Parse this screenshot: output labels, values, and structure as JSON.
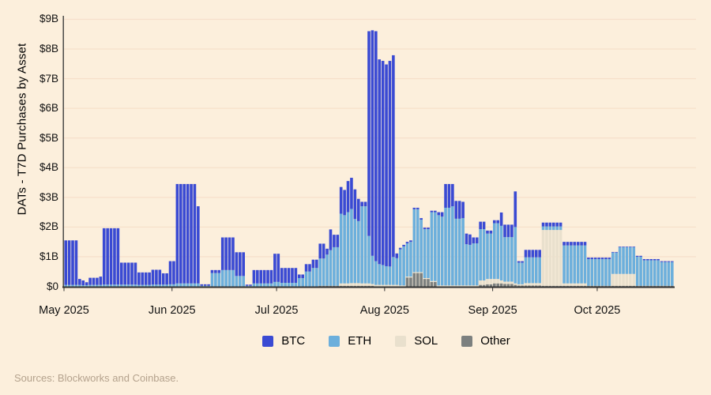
{
  "y_axis": {
    "title": "DATs - T7D Purchases by Asset",
    "tick_labels": [
      "$0",
      "$1B",
      "$2B",
      "$3B",
      "$4B",
      "$5B",
      "$6B",
      "$7B",
      "$8B",
      "$9B"
    ]
  },
  "x_axis": {
    "tick_labels": [
      "May 2025",
      "Jun 2025",
      "Jul 2025",
      "Aug 2025",
      "Sep 2025",
      "Oct 2025"
    ]
  },
  "footer": {
    "sources": "Sources: Blockworks and Coinbase."
  },
  "chart_data": {
    "type": "bar",
    "stacked": true,
    "title": "DATs - T7D Purchases by Asset",
    "ylabel": "DATs - T7D Purchases by Asset",
    "y_unit": "USD billions",
    "ylim": [
      0,
      9
    ],
    "grid": "horizontal",
    "legend_position": "bottom",
    "x_range": [
      "2025-05-01",
      "2025-10-22"
    ],
    "stack_order_bottom_to_top": [
      "Other",
      "SOL",
      "ETH",
      "BTC"
    ],
    "series_meta": [
      {
        "name": "BTC",
        "color": "#3a4ad3"
      },
      {
        "name": "ETH",
        "color": "#6cafdc"
      },
      {
        "name": "SOL",
        "color": "#e9e0cd"
      },
      {
        "name": "Other",
        "color": "#7c807f"
      }
    ],
    "month_lengths": {
      "May": 31,
      "Jun": 30,
      "Jul": 31,
      "Aug": 31,
      "Sep": 30,
      "Oct": 22
    },
    "runs_format": [
      "month",
      "start_day",
      "end_day",
      "BTC_B",
      "ETH_B",
      "SOL_B",
      "Other_B"
    ],
    "runs": [
      [
        "May",
        1,
        4,
        1.5,
        0.05,
        0,
        0
      ],
      [
        "May",
        5,
        5,
        0.2,
        0.05,
        0,
        0
      ],
      [
        "May",
        6,
        6,
        0.16,
        0.04,
        0,
        0
      ],
      [
        "May",
        7,
        7,
        0.1,
        0.04,
        0,
        0
      ],
      [
        "May",
        8,
        10,
        0.24,
        0.05,
        0,
        0
      ],
      [
        "May",
        11,
        11,
        0.28,
        0.05,
        0,
        0
      ],
      [
        "May",
        12,
        16,
        1.9,
        0.06,
        0,
        0
      ],
      [
        "May",
        17,
        21,
        0.74,
        0.06,
        0,
        0
      ],
      [
        "May",
        22,
        25,
        0.42,
        0.05,
        0,
        0
      ],
      [
        "May",
        26,
        28,
        0.5,
        0.06,
        0,
        0
      ],
      [
        "May",
        29,
        30,
        0.38,
        0.06,
        0,
        0
      ],
      [
        "May",
        31,
        31,
        0.78,
        0.07,
        0,
        0
      ],
      [
        "Jun",
        1,
        1,
        0.78,
        0.07,
        0,
        0
      ],
      [
        "Jun",
        2,
        7,
        3.35,
        0.1,
        0,
        0
      ],
      [
        "Jun",
        8,
        8,
        2.6,
        0.1,
        0,
        0
      ],
      [
        "Jun",
        9,
        11,
        0.05,
        0.02,
        0,
        0
      ],
      [
        "Jun",
        12,
        14,
        0.1,
        0.45,
        0,
        0
      ],
      [
        "Jun",
        15,
        18,
        1.1,
        0.55,
        0,
        0
      ],
      [
        "Jun",
        19,
        21,
        0.8,
        0.35,
        0,
        0
      ],
      [
        "Jun",
        22,
        23,
        0.04,
        0.02,
        0,
        0
      ],
      [
        "Jun",
        24,
        29,
        0.45,
        0.1,
        0,
        0
      ],
      [
        "Jun",
        30,
        30,
        0.95,
        0.15,
        0,
        0
      ],
      [
        "Jul",
        1,
        1,
        0.95,
        0.15,
        0,
        0
      ],
      [
        "Jul",
        2,
        6,
        0.5,
        0.12,
        0,
        0
      ],
      [
        "Jul",
        7,
        8,
        0.12,
        0.28,
        0,
        0
      ],
      [
        "Jul",
        9,
        10,
        0.25,
        0.5,
        0,
        0
      ],
      [
        "Jul",
        11,
        12,
        0.28,
        0.62,
        0,
        0
      ],
      [
        "Jul",
        13,
        14,
        0.5,
        0.92,
        0,
        0.02
      ],
      [
        "Jul",
        15,
        15,
        0.2,
        1.05,
        0,
        0.02
      ],
      [
        "Jul",
        16,
        16,
        0.7,
        1.2,
        0,
        0.02
      ],
      [
        "Jul",
        17,
        18,
        0.42,
        1.3,
        0,
        0.02
      ],
      [
        "Jul",
        19,
        19,
        0.9,
        2.35,
        0.08,
        0.02
      ],
      [
        "Jul",
        20,
        20,
        0.85,
        2.3,
        0.08,
        0.02
      ],
      [
        "Jul",
        21,
        21,
        1.05,
        2.4,
        0.08,
        0.02
      ],
      [
        "Jul",
        22,
        22,
        1.05,
        2.5,
        0.09,
        0.02
      ],
      [
        "Jul",
        23,
        23,
        1.0,
        2.16,
        0.09,
        0.02
      ],
      [
        "Jul",
        24,
        24,
        0.75,
        2.09,
        0.09,
        0.02
      ],
      [
        "Jul",
        25,
        26,
        0.15,
        2.6,
        0.08,
        0.02
      ],
      [
        "Jul",
        27,
        27,
        6.9,
        1.6,
        0.08,
        0.02
      ],
      [
        "Jul",
        28,
        28,
        7.6,
        0.95,
        0.06,
        0.02
      ],
      [
        "Jul",
        29,
        29,
        7.75,
        0.8,
        0.05,
        0
      ],
      [
        "Jul",
        30,
        30,
        6.9,
        0.7,
        0.05,
        0
      ],
      [
        "Jul",
        31,
        31,
        6.88,
        0.67,
        0.05,
        0
      ],
      [
        "Aug",
        1,
        1,
        6.8,
        0.63,
        0.05,
        0
      ],
      [
        "Aug",
        2,
        2,
        6.93,
        0.62,
        0.05,
        0
      ],
      [
        "Aug",
        3,
        3,
        6.8,
        0.94,
        0.05,
        0
      ],
      [
        "Aug",
        4,
        4,
        0.16,
        0.9,
        0.05,
        0
      ],
      [
        "Aug",
        5,
        5,
        0.05,
        1.22,
        0.03,
        0
      ],
      [
        "Aug",
        6,
        6,
        0.05,
        1.32,
        0.03,
        0
      ],
      [
        "Aug",
        7,
        7,
        0.05,
        1.12,
        0.03,
        0.3
      ],
      [
        "Aug",
        8,
        8,
        0.05,
        1.17,
        0.03,
        0.3
      ],
      [
        "Aug",
        9,
        10,
        0.05,
        2.12,
        0.03,
        0.45
      ],
      [
        "Aug",
        11,
        11,
        0.05,
        1.77,
        0.03,
        0.45
      ],
      [
        "Aug",
        12,
        13,
        0.05,
        1.65,
        0.03,
        0.25
      ],
      [
        "Aug",
        14,
        15,
        0.05,
        2.32,
        0.03,
        0.15
      ],
      [
        "Aug",
        16,
        16,
        0.1,
        2.37,
        0.03,
        0
      ],
      [
        "Aug",
        17,
        17,
        0.15,
        2.32,
        0.03,
        0
      ],
      [
        "Aug",
        18,
        19,
        0.8,
        2.62,
        0.03,
        0
      ],
      [
        "Aug",
        20,
        20,
        0.75,
        2.67,
        0.03,
        0
      ],
      [
        "Aug",
        21,
        22,
        0.6,
        2.25,
        0.03,
        0
      ],
      [
        "Aug",
        23,
        23,
        0.55,
        2.27,
        0.03,
        0
      ],
      [
        "Aug",
        24,
        24,
        0.36,
        1.39,
        0.03,
        0
      ],
      [
        "Aug",
        25,
        25,
        0.35,
        1.37,
        0.03,
        0
      ],
      [
        "Aug",
        26,
        27,
        0.2,
        1.42,
        0.03,
        0
      ],
      [
        "Aug",
        28,
        29,
        0.25,
        1.73,
        0.15,
        0.05
      ],
      [
        "Aug",
        30,
        31,
        0.1,
        1.53,
        0.18,
        0.07
      ],
      [
        "Sep",
        1,
        2,
        0.1,
        1.88,
        0.15,
        0.1
      ],
      [
        "Sep",
        3,
        3,
        0.45,
        1.84,
        0.1,
        0.1
      ],
      [
        "Sep",
        4,
        6,
        0.42,
        1.5,
        0.08,
        0.08
      ],
      [
        "Sep",
        7,
        7,
        1.2,
        1.9,
        0.05,
        0.05
      ],
      [
        "Sep",
        8,
        9,
        0.05,
        0.73,
        0.04,
        0.03
      ],
      [
        "Sep",
        10,
        14,
        0.25,
        0.87,
        0.08,
        0.03
      ],
      [
        "Sep",
        15,
        20,
        0.13,
        0.12,
        1.88,
        0.02
      ],
      [
        "Sep",
        21,
        27,
        0.12,
        1.28,
        0.08,
        0.02
      ],
      [
        "Sep",
        28,
        30,
        0.05,
        0.9,
        0,
        0.02
      ],
      [
        "Oct",
        1,
        4,
        0.05,
        0.9,
        0,
        0.02
      ],
      [
        "Oct",
        5,
        6,
        0.02,
        0.72,
        0.4,
        0.02
      ],
      [
        "Oct",
        7,
        11,
        0.02,
        0.9,
        0.4,
        0.02
      ],
      [
        "Oct",
        12,
        13,
        0.03,
        0.98,
        0,
        0.02
      ],
      [
        "Oct",
        14,
        18,
        0.04,
        0.86,
        0,
        0.02
      ],
      [
        "Oct",
        19,
        22,
        0.03,
        0.8,
        0,
        0.02
      ]
    ]
  },
  "colors": {
    "background": "#fcefdc",
    "gridline": "#f6dfca",
    "axis_spine": "#2f2f2f",
    "tick_text": "#111111",
    "footer_text": "#b4a28d"
  }
}
